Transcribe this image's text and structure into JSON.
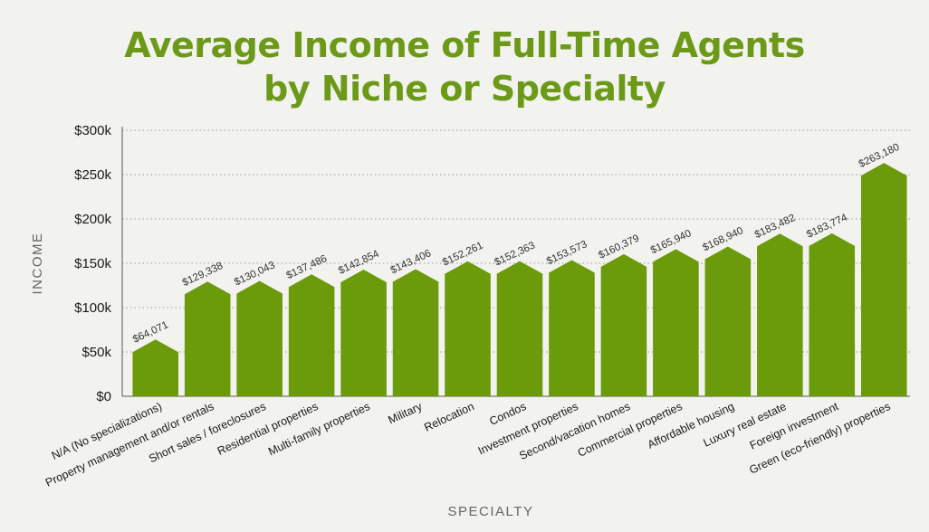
{
  "chart_data": {
    "type": "bar",
    "title_lines": [
      "Average Income of Full-Time Agents",
      "by Niche or Specialty"
    ],
    "xlabel": "SPECIALTY",
    "ylabel": "INCOME",
    "ylim": [
      0,
      300000
    ],
    "yticks": [
      {
        "value": 0,
        "label": "$0"
      },
      {
        "value": 50000,
        "label": "$50k"
      },
      {
        "value": 100000,
        "label": "$100k"
      },
      {
        "value": 150000,
        "label": "$150k"
      },
      {
        "value": 200000,
        "label": "$200k"
      },
      {
        "value": 250000,
        "label": "$250k"
      },
      {
        "value": 300000,
        "label": "$300k"
      }
    ],
    "grid": true,
    "bar_color": "#6b9a0a",
    "categories": [
      "N/A (No specializations)",
      "Property management and/or rentals",
      "Short sales / foreclosures",
      "Residential properties",
      "Multi-family properties",
      "Military",
      "Relocation",
      "Condos",
      "Investment properties",
      "Second/vacation homes",
      "Commercial properties",
      "Affordable housing",
      "Luxury real estate",
      "Foreign investment",
      "Green (eco-friendly) properties"
    ],
    "values": [
      64071,
      129338,
      130043,
      137486,
      142854,
      143406,
      152261,
      152363,
      153573,
      160379,
      165940,
      168940,
      183482,
      183774,
      263180
    ],
    "value_labels": [
      "$64,071",
      "$129,338",
      "$130,043",
      "$137,486",
      "$142,854",
      "$143,406",
      "$152,261",
      "$152,363",
      "$153,573",
      "$160,379",
      "$165,940",
      "$168,940",
      "$183,482",
      "$183,774",
      "$263,180"
    ]
  }
}
